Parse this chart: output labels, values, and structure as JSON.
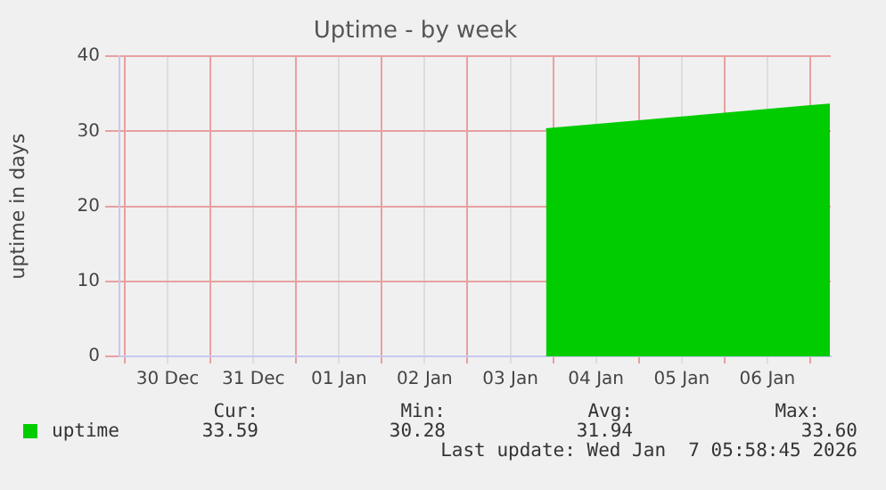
{
  "chart_data": {
    "type": "area",
    "title": "Uptime - by week",
    "ylabel": "uptime in days",
    "x": [
      "2026-01-03T22:00",
      "2026-01-04T00:00",
      "2026-01-05T00:00",
      "2026-01-06T00:00",
      "2026-01-07T00:00",
      "2026-01-07T05:30"
    ],
    "series": [
      {
        "name": "uptime",
        "color": "#00cc00",
        "values": [
          30.28,
          30.36,
          31.36,
          32.36,
          33.36,
          33.59
        ]
      }
    ],
    "xlim": [
      "2025-12-29T22:30",
      "2026-01-07T05:45"
    ],
    "xticks": [
      {
        "value": "2025-12-30T00:00",
        "label": null
      },
      {
        "value": "2025-12-30T12:00",
        "label": "30 Dec"
      },
      {
        "value": "2025-12-31T00:00",
        "label": null
      },
      {
        "value": "2025-12-31T12:00",
        "label": "31 Dec"
      },
      {
        "value": "2026-01-01T00:00",
        "label": null
      },
      {
        "value": "2026-01-01T12:00",
        "label": "01 Jan"
      },
      {
        "value": "2026-01-02T00:00",
        "label": null
      },
      {
        "value": "2026-01-02T12:00",
        "label": "02 Jan"
      },
      {
        "value": "2026-01-03T00:00",
        "label": null
      },
      {
        "value": "2026-01-03T12:00",
        "label": "03 Jan"
      },
      {
        "value": "2026-01-04T00:00",
        "label": null
      },
      {
        "value": "2026-01-04T12:00",
        "label": "04 Jan"
      },
      {
        "value": "2026-01-05T00:00",
        "label": null
      },
      {
        "value": "2026-01-05T12:00",
        "label": "05 Jan"
      },
      {
        "value": "2026-01-06T00:00",
        "label": null
      },
      {
        "value": "2026-01-06T12:00",
        "label": "06 Jan"
      },
      {
        "value": "2026-01-07T00:00",
        "label": null
      }
    ],
    "ylim": [
      0,
      40
    ],
    "yticks": [
      0,
      10,
      20,
      30,
      40
    ],
    "grid": true,
    "legend": "bottom left",
    "annotations": [
      "Cur:",
      "Min:",
      "Avg:",
      "Max:",
      "33.59",
      "30.28",
      "31.94",
      "33.60",
      "Last update: Wed Jan  7 05:58:45 2026"
    ]
  }
}
